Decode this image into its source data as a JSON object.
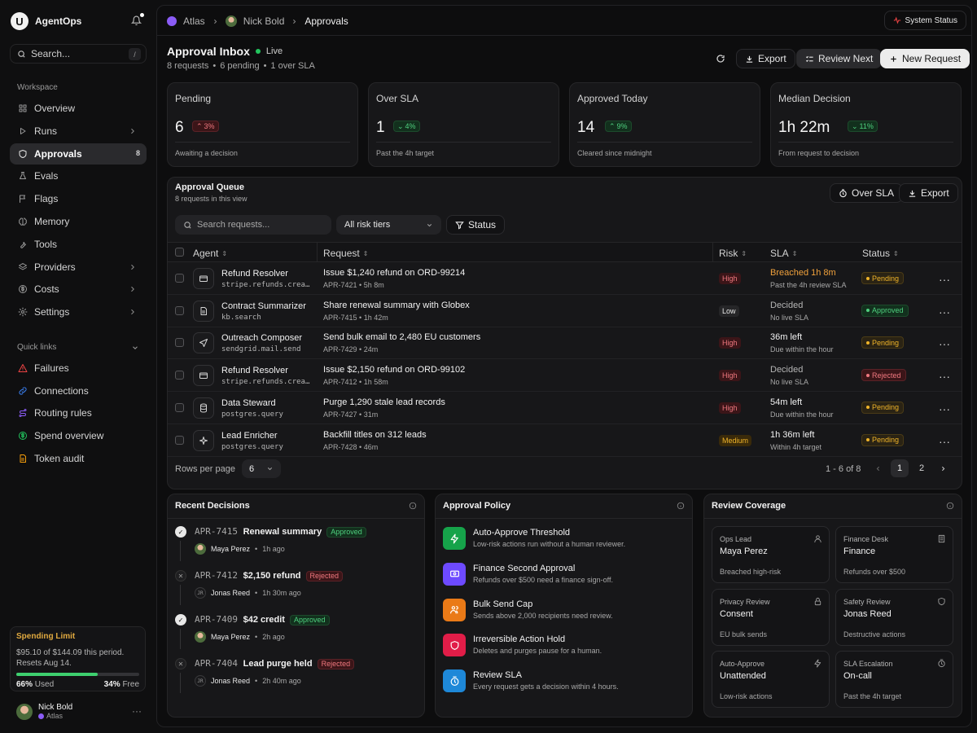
{
  "app": {
    "name": "AgentOps",
    "logo_letter": "U"
  },
  "search": {
    "placeholder": "Search...",
    "shortcut": "/"
  },
  "sidebar": {
    "workspace_label": "Workspace",
    "items": [
      {
        "label": "Overview",
        "icon": "grid-icon"
      },
      {
        "label": "Runs",
        "icon": "play-icon"
      },
      {
        "label": "Approvals",
        "icon": "shield-icon",
        "count": "8"
      },
      {
        "label": "Evals",
        "icon": "flask-icon"
      },
      {
        "label": "Flags",
        "icon": "flag-icon"
      },
      {
        "label": "Memory",
        "icon": "brain-icon"
      },
      {
        "label": "Tools",
        "icon": "wrench-icon"
      },
      {
        "label": "Providers",
        "icon": "stack-icon"
      },
      {
        "label": "Costs",
        "icon": "dollar-icon"
      },
      {
        "label": "Settings",
        "icon": "gear-icon"
      }
    ],
    "quick_links_label": "Quick links",
    "quick_links": [
      {
        "label": "Failures",
        "icon": "warning-icon",
        "color": "#ef4444"
      },
      {
        "label": "Connections",
        "icon": "link-icon",
        "color": "#3b82f6"
      },
      {
        "label": "Routing rules",
        "icon": "route-icon",
        "color": "#8b5cf6"
      },
      {
        "label": "Spend overview",
        "icon": "dollar-icon",
        "color": "#22c55e"
      },
      {
        "label": "Token audit",
        "icon": "document-icon",
        "color": "#f59e0b"
      }
    ],
    "spending": {
      "title": "Spending Limit",
      "text": "$95.10 of $144.09 this period. Resets Aug 14.",
      "used_pct": 0.66,
      "used_label": "66%",
      "used_word": "Used",
      "free_label": "34%",
      "free_word": "Free"
    },
    "user": {
      "name": "Nick Bold",
      "workspace": "Atlas"
    }
  },
  "breadcrumb": [
    "Atlas",
    "Nick Bold",
    "Approvals"
  ],
  "system_status": "System Status",
  "header": {
    "title": "Approval Inbox",
    "live": "Live",
    "sub": [
      "8 requests",
      "6 pending",
      "1 over SLA"
    ],
    "export": "Export",
    "review_next": "Review Next",
    "new_request": "New Request"
  },
  "kpis": [
    {
      "title": "Pending",
      "value": "6",
      "delta": "3%",
      "direction": "up",
      "tone": "red",
      "sub": "Awaiting a decision"
    },
    {
      "title": "Over SLA",
      "value": "1",
      "delta": "4%",
      "direction": "down",
      "tone": "green",
      "sub": "Past the 4h target"
    },
    {
      "title": "Approved Today",
      "value": "14",
      "delta": "9%",
      "direction": "up",
      "tone": "green",
      "sub": "Cleared since midnight"
    },
    {
      "title": "Median Decision",
      "value": "1h 22m",
      "delta": "11%",
      "direction": "down",
      "tone": "green",
      "sub": "From request to decision"
    }
  ],
  "queue": {
    "title": "Approval Queue",
    "subtitle": "8 requests in this view",
    "over_sla": "Over SLA",
    "export": "Export",
    "search_placeholder": "Search requests...",
    "risk_filter": "All risk tiers",
    "status_filter": "Status",
    "columns": [
      "Agent",
      "Request",
      "Risk",
      "SLA",
      "Status"
    ],
    "rows": [
      {
        "agent": "Refund Resolver",
        "tool": "stripe.refunds.create",
        "icon": "credit-card-icon",
        "request": "Issue $1,240 refund on ORD-99214",
        "req_id": "APR-7421",
        "age": "5h 8m",
        "risk": "High",
        "sla": "Breached 1h 8m",
        "sla_sub": "Past the 4h review SLA",
        "sla_tone": "warn",
        "status": "Pending"
      },
      {
        "agent": "Contract Summarizer",
        "tool": "kb.search",
        "icon": "document-icon",
        "request": "Share renewal summary with Globex",
        "req_id": "APR-7415",
        "age": "1h 42m",
        "risk": "Low",
        "sla": "Decided",
        "sla_sub": "No live SLA",
        "sla_tone": "muted",
        "status": "Approved"
      },
      {
        "agent": "Outreach Composer",
        "tool": "sendgrid.mail.send",
        "icon": "send-icon",
        "request": "Send bulk email to 2,480 EU customers",
        "req_id": "APR-7429",
        "age": "24m",
        "risk": "High",
        "sla": "36m left",
        "sla_sub": "Due within the hour",
        "sla_tone": "normal",
        "status": "Pending"
      },
      {
        "agent": "Refund Resolver",
        "tool": "stripe.refunds.create",
        "icon": "credit-card-icon",
        "request": "Issue $2,150 refund on ORD-99102",
        "req_id": "APR-7412",
        "age": "1h 58m",
        "risk": "High",
        "sla": "Decided",
        "sla_sub": "No live SLA",
        "sla_tone": "muted",
        "status": "Rejected"
      },
      {
        "agent": "Data Steward",
        "tool": "postgres.query",
        "icon": "database-icon",
        "request": "Purge 1,290 stale lead records",
        "req_id": "APR-7427",
        "age": "31m",
        "risk": "High",
        "sla": "54m left",
        "sla_sub": "Due within the hour",
        "sla_tone": "normal",
        "status": "Pending"
      },
      {
        "agent": "Lead Enricher",
        "tool": "postgres.query",
        "icon": "sparkle-icon",
        "request": "Backfill titles on 312 leads",
        "req_id": "APR-7428",
        "age": "46m",
        "risk": "Medium",
        "sla": "1h 36m left",
        "sla_sub": "Within 4h target",
        "sla_tone": "normal",
        "status": "Pending"
      }
    ],
    "rows_per_page_label": "Rows per page",
    "rows_per_page": "6",
    "range": "1 - 6 of 8",
    "pages": [
      "1",
      "2"
    ]
  },
  "recent_decisions": {
    "title": "Recent Decisions",
    "items": [
      {
        "id": "APR-7415",
        "title": "Renewal summary",
        "status": "Approved",
        "by": "Maya Perez",
        "initials": "",
        "when": "1h ago"
      },
      {
        "id": "APR-7412",
        "title": "$2,150 refund",
        "status": "Rejected",
        "by": "Jonas Reed",
        "initials": "JR",
        "when": "1h 30m ago"
      },
      {
        "id": "APR-7409",
        "title": "$42 credit",
        "status": "Approved",
        "by": "Maya Perez",
        "initials": "",
        "when": "2h ago"
      },
      {
        "id": "APR-7404",
        "title": "Lead purge held",
        "status": "Rejected",
        "by": "Jonas Reed",
        "initials": "JR",
        "when": "2h 40m ago"
      }
    ]
  },
  "policy": {
    "title": "Approval Policy",
    "items": [
      {
        "title": "Auto-Approve Threshold",
        "sub": "Low-risk actions run without a human reviewer.",
        "color": "#16a34a",
        "icon": "bolt-icon"
      },
      {
        "title": "Finance Second Approval",
        "sub": "Refunds over $500 need a finance sign-off.",
        "color": "#6d4aff",
        "icon": "cash-icon"
      },
      {
        "title": "Bulk Send Cap",
        "sub": "Sends above 2,000 recipients need review.",
        "color": "#ea7a17",
        "icon": "users-icon"
      },
      {
        "title": "Irreversible Action Hold",
        "sub": "Deletes and purges pause for a human.",
        "color": "#e11d48",
        "icon": "shield-icon"
      },
      {
        "title": "Review SLA",
        "sub": "Every request gets a decision within 4 hours.",
        "color": "#1e88d8",
        "icon": "timer-icon"
      }
    ]
  },
  "coverage": {
    "title": "Review Coverage",
    "items": [
      {
        "label": "Ops Lead",
        "value": "Maya Perez",
        "sub": "Breached high-risk",
        "icon": "user-icon"
      },
      {
        "label": "Finance Desk",
        "value": "Finance",
        "sub": "Refunds over $500",
        "icon": "building-icon"
      },
      {
        "label": "Privacy Review",
        "value": "Consent",
        "sub": "EU bulk sends",
        "icon": "lock-icon"
      },
      {
        "label": "Safety Review",
        "value": "Jonas Reed",
        "sub": "Destructive actions",
        "icon": "shield-icon"
      },
      {
        "label": "Auto-Approve",
        "value": "Unattended",
        "sub": "Low-risk actions",
        "icon": "bolt-icon"
      },
      {
        "label": "SLA Escalation",
        "value": "On-call",
        "sub": "Past the 4h target",
        "icon": "timer-icon"
      }
    ]
  }
}
